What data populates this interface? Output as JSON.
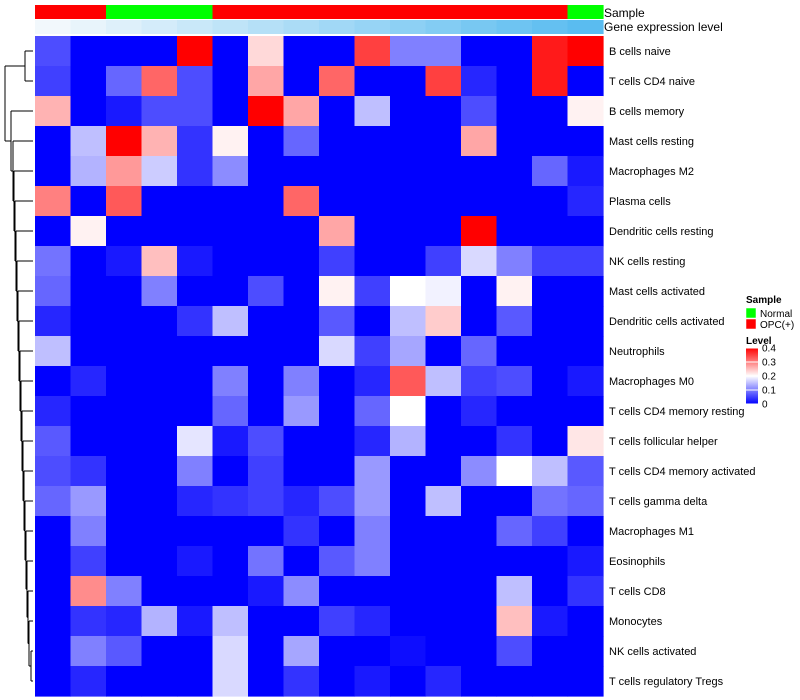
{
  "chart_data": {
    "type": "heatmap",
    "annotation_labels": {
      "sample": "Sample",
      "gene_expression": "Gene expression level"
    },
    "sample_groups": [
      "OPC(+)",
      "OPC(+)",
      "Normal",
      "Normal",
      "Normal",
      "OPC(+)",
      "OPC(+)",
      "OPC(+)",
      "OPC(+)",
      "OPC(+)",
      "OPC(+)",
      "OPC(+)",
      "OPC(+)",
      "OPC(+)",
      "OPC(+)",
      "Normal"
    ],
    "gene_expression_levels": [
      0.05,
      0.1,
      0.15,
      0.2,
      0.25,
      0.3,
      0.35,
      0.4,
      0.45,
      0.5,
      0.55,
      0.6,
      0.65,
      0.7,
      0.75,
      0.8
    ],
    "rows": [
      "B cells naive",
      "T cells CD4 naive",
      "B cells memory",
      "Mast cells resting",
      "Macrophages M2",
      "Plasma cells",
      "Dendritic cells resting",
      "NK cells resting",
      "Mast cells activated",
      "Dendritic cells activated",
      "Neutrophils",
      "Macrophages M0",
      "T cells CD4 memory resting",
      "T cells follicular helper",
      "T cells CD4 memory activated",
      "T cells gamma delta",
      "Macrophages M1",
      "Eosinophils",
      "T cells CD8",
      "Monocytes",
      "NK cells activated",
      "T cells regulatory  Tregs"
    ],
    "values": [
      [
        0.06,
        0,
        0,
        0,
        0.4,
        0,
        0.23,
        0,
        0,
        0.35,
        0.1,
        0.1,
        0,
        0,
        0.38,
        0.4
      ],
      [
        0.05,
        0,
        0.08,
        0.32,
        0.06,
        0,
        0.27,
        0,
        0.32,
        0,
        0,
        0.35,
        0.03,
        0,
        0.38,
        0
      ],
      [
        0.26,
        0,
        0.02,
        0.06,
        0.06,
        0,
        0.4,
        0.27,
        0,
        0.15,
        0,
        0,
        0.06,
        0,
        0,
        0.21
      ],
      [
        0,
        0.15,
        0.4,
        0.26,
        0.04,
        0.21,
        0,
        0.08,
        0,
        0,
        0,
        0,
        0.27,
        0,
        0,
        0
      ],
      [
        0,
        0.14,
        0.28,
        0.16,
        0.04,
        0.11,
        0,
        0,
        0,
        0,
        0,
        0,
        0,
        0,
        0.08,
        0.02
      ],
      [
        0.3,
        0,
        0.33,
        0,
        0,
        0,
        0,
        0.32,
        0,
        0,
        0,
        0,
        0,
        0,
        0,
        0.03
      ],
      [
        0,
        0.21,
        0,
        0,
        0,
        0,
        0,
        0,
        0.27,
        0,
        0,
        0,
        0.4,
        0,
        0,
        0
      ],
      [
        0.09,
        0,
        0.02,
        0.25,
        0.02,
        0,
        0,
        0,
        0.05,
        0,
        0,
        0.05,
        0.17,
        0.1,
        0.05,
        0.05
      ],
      [
        0.08,
        0,
        0,
        0.1,
        0,
        0,
        0.06,
        0,
        0.21,
        0.05,
        0.2,
        0.19,
        0,
        0.21,
        0,
        0
      ],
      [
        0.03,
        0,
        0,
        0,
        0.04,
        0.15,
        0,
        0,
        0.07,
        0,
        0.15,
        0.24,
        0,
        0.07,
        0,
        0
      ],
      [
        0.15,
        0,
        0,
        0,
        0,
        0,
        0,
        0,
        0.17,
        0.05,
        0.13,
        0,
        0.08,
        0,
        0,
        0
      ],
      [
        0,
        0.03,
        0,
        0,
        0,
        0.1,
        0,
        0.1,
        0,
        0.03,
        0.33,
        0.15,
        0.05,
        0.06,
        0,
        0.02
      ],
      [
        0.03,
        0,
        0,
        0,
        0,
        0.08,
        0,
        0.12,
        0,
        0.08,
        0.2,
        0,
        0.03,
        0,
        0,
        0
      ],
      [
        0.07,
        0,
        0,
        0,
        0.18,
        0.02,
        0.06,
        0,
        0,
        0.03,
        0.14,
        0,
        0,
        0.04,
        0,
        0.22
      ],
      [
        0.06,
        0.04,
        0,
        0,
        0.1,
        0,
        0.05,
        0,
        0,
        0.12,
        0,
        0,
        0.11,
        0.2,
        0.15,
        0.07
      ],
      [
        0.08,
        0.12,
        0,
        0,
        0.03,
        0.04,
        0.05,
        0.03,
        0.06,
        0.12,
        0,
        0.15,
        0,
        0,
        0.09,
        0.08
      ],
      [
        0,
        0.1,
        0,
        0,
        0,
        0,
        0,
        0.04,
        0,
        0.1,
        0,
        0,
        0,
        0.08,
        0.05,
        0
      ],
      [
        0,
        0.05,
        0,
        0,
        0.02,
        0,
        0.09,
        0,
        0.07,
        0.1,
        0,
        0,
        0,
        0,
        0,
        0.02
      ],
      [
        0,
        0.29,
        0.1,
        0,
        0,
        0,
        0.02,
        0.11,
        0,
        0,
        0,
        0,
        0,
        0.15,
        0,
        0.04
      ],
      [
        0,
        0.04,
        0.03,
        0.14,
        0.02,
        0.15,
        0,
        0,
        0.05,
        0.03,
        0,
        0,
        0,
        0.25,
        0.02,
        0
      ],
      [
        0,
        0.1,
        0.07,
        0,
        0,
        0.17,
        0,
        0.13,
        0,
        0,
        0.01,
        0,
        0,
        0.06,
        0,
        0
      ],
      [
        0,
        0.03,
        0,
        0,
        0,
        0.17,
        0,
        0.04,
        0,
        0.02,
        0,
        0.03,
        0,
        0,
        0,
        0
      ]
    ],
    "color_scale": {
      "min": 0,
      "max": 0.4,
      "low": "#0000FF",
      "mid": "#FFFFFF",
      "high": "#FF0000",
      "mid_value": 0.2
    },
    "legends": {
      "sample": {
        "title": "Sample",
        "entries": [
          {
            "label": "Normal",
            "color": "#00FF00"
          },
          {
            "label": "OPC(+)",
            "color": "#FF0000"
          }
        ]
      },
      "level": {
        "title": "Level",
        "ticks": [
          {
            "value": 0.4,
            "label": "0.4"
          },
          {
            "value": 0.3,
            "label": "0.3"
          },
          {
            "value": 0.2,
            "label": "0.2"
          },
          {
            "value": 0.1,
            "label": "0.1"
          },
          {
            "value": 0,
            "label": "0"
          }
        ]
      }
    },
    "group_colors": {
      "Normal": "#00FF00",
      "OPC(+)": "#FF0000"
    },
    "expression_colors": {
      "low": "#F2F8FC",
      "high": "#5ABCF0"
    }
  }
}
